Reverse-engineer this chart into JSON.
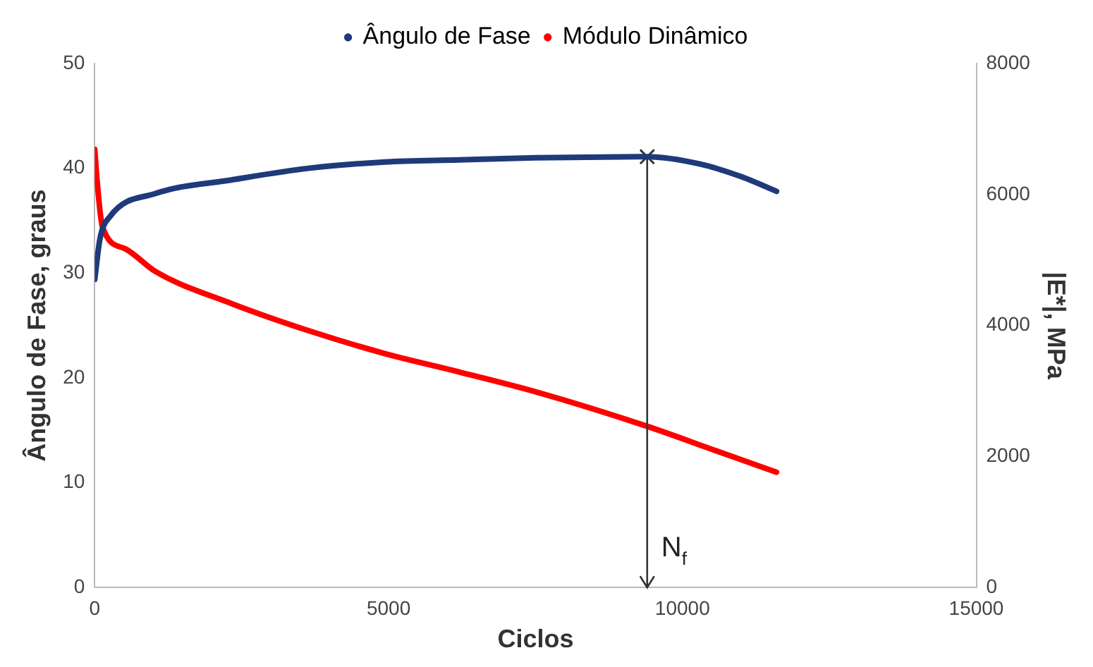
{
  "chart_data": {
    "type": "line",
    "xlabel": "Ciclos",
    "ylabel": "Ângulo de Fase, graus",
    "y2label": "|E*|, MPa",
    "xlim": [
      0,
      15000
    ],
    "xticks": [
      0,
      5000,
      10000,
      15000
    ],
    "ylim": [
      0,
      50
    ],
    "yticks": [
      0,
      10,
      20,
      30,
      40,
      50
    ],
    "y2lim": [
      0,
      8000
    ],
    "y2ticks": [
      0,
      2000,
      4000,
      6000,
      8000
    ],
    "grid": false,
    "legend": "top",
    "line_style": "solid",
    "series": [
      {
        "name": "Ângulo de Fase",
        "color": "#1f3a7a",
        "x": [
          0,
          90,
          260,
          1040,
          2340,
          3640,
          4940,
          6200,
          7500,
          9400,
          10300,
          11000,
          11600
        ],
        "values": [
          29.4,
          33.3,
          35.4,
          37.6,
          38.9,
          40.0,
          40.6,
          40.8,
          41.0,
          41.1,
          40.4,
          39.2,
          37.8
        ]
      },
      {
        "name": "Módulo Dinâmico",
        "color": "#ff0000",
        "axis": "y2",
        "x": [
          0,
          40,
          130,
          520,
          1040,
          2340,
          3640,
          4940,
          6200,
          7530,
          9400,
          10500,
          11600
        ],
        "values": [
          6690,
          6210,
          5510,
          5170,
          4820,
          4330,
          3920,
          3570,
          3290,
          2980,
          2460,
          2110,
          1760
        ]
      },
      {
        "type": "scatter",
        "marker": "cross",
        "color": "#333333",
        "x": [
          9400
        ],
        "values": [
          41.1
        ]
      }
    ],
    "ref_lines": [
      {
        "axis": "x",
        "value": 9400,
        "label": "N$_{f}$"
      }
    ]
  }
}
